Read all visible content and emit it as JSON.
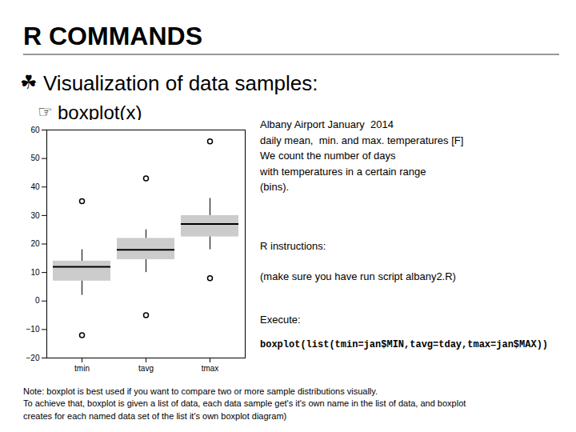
{
  "chart_data": {
    "type": "box",
    "title": "R COMMANDS",
    "annotations": [
      "☘",
      "Visualization of data samples:",
      "☞",
      "boxplot(x)",
      "Albany Airport January  2014\ndaily mean,  min. and max. temperatures [F]\nWe count the number of days\nwith temperatures in a certain range\n(bins).",
      "R instructions:",
      "(make sure you have run script albany2.R)",
      "Execute:",
      "boxplot(list(tmin=jan$MIN,tavg=tday,tmax=jan$MAX))",
      "Note: boxplot is best used if you want to compare two or more sample distributions visually.\nTo achieve that, boxplot is given a list of data, each data sample get's it's own name in the list of data, and boxplot\ncreates for each named data set of the list it's own boxplot diagram)"
    ],
    "categories": [
      "tmin",
      "tavg",
      "tmax"
    ],
    "values": [
      [
        15,
        13,
        15,
        12,
        5,
        8,
        10,
        14,
        14,
        12,
        8,
        6,
        2,
        -12,
        5,
        10,
        12,
        15,
        16,
        18,
        14,
        12,
        10,
        8,
        5,
        3,
        6,
        10,
        13,
        15,
        35
      ],
      [
        22,
        20,
        22,
        18,
        12,
        15,
        17,
        21,
        22,
        20,
        15,
        13,
        10,
        -5,
        12,
        18,
        20,
        22,
        24,
        43,
        22,
        20,
        18,
        15,
        12,
        10,
        14,
        18,
        22,
        24,
        25
      ],
      [
        30,
        28,
        30,
        26,
        20,
        23,
        25,
        30,
        32,
        28,
        24,
        21,
        18,
        8,
        20,
        27,
        29,
        32,
        34,
        56,
        30,
        28,
        26,
        23,
        20,
        18,
        22,
        27,
        32,
        35,
        36
      ]
    ],
    "ylim": [
      -20,
      60
    ],
    "yticks": [
      -20,
      -10,
      0,
      10,
      20,
      30,
      40,
      50,
      60
    ],
    "grid": false
  }
}
